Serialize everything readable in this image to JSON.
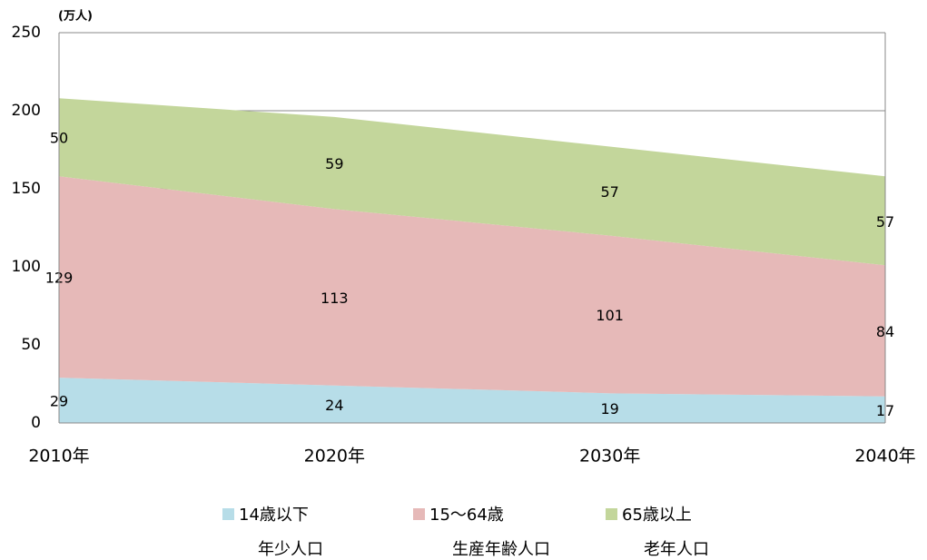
{
  "chart_data": {
    "type": "stacked_area",
    "y_label": "(万人)",
    "categories": [
      "2010年",
      "2020年",
      "2030年",
      "2040年"
    ],
    "series": [
      {
        "name": "14歳以下",
        "sublabel": "年少人口",
        "color": "#b7dde8",
        "values": [
          29,
          24,
          19,
          17
        ]
      },
      {
        "name": "15〜64歳",
        "sublabel": "生産年齢人口",
        "color": "#e6b9b8",
        "values": [
          129,
          113,
          101,
          84
        ]
      },
      {
        "name": "65歳以上",
        "sublabel": "老年人口",
        "color": "#c3d69b",
        "values": [
          50,
          59,
          57,
          57
        ]
      }
    ],
    "ylim": [
      0,
      250
    ],
    "yticks": [
      0,
      50,
      100,
      150,
      200,
      250
    ],
    "grid": true,
    "legend": "bottom"
  }
}
